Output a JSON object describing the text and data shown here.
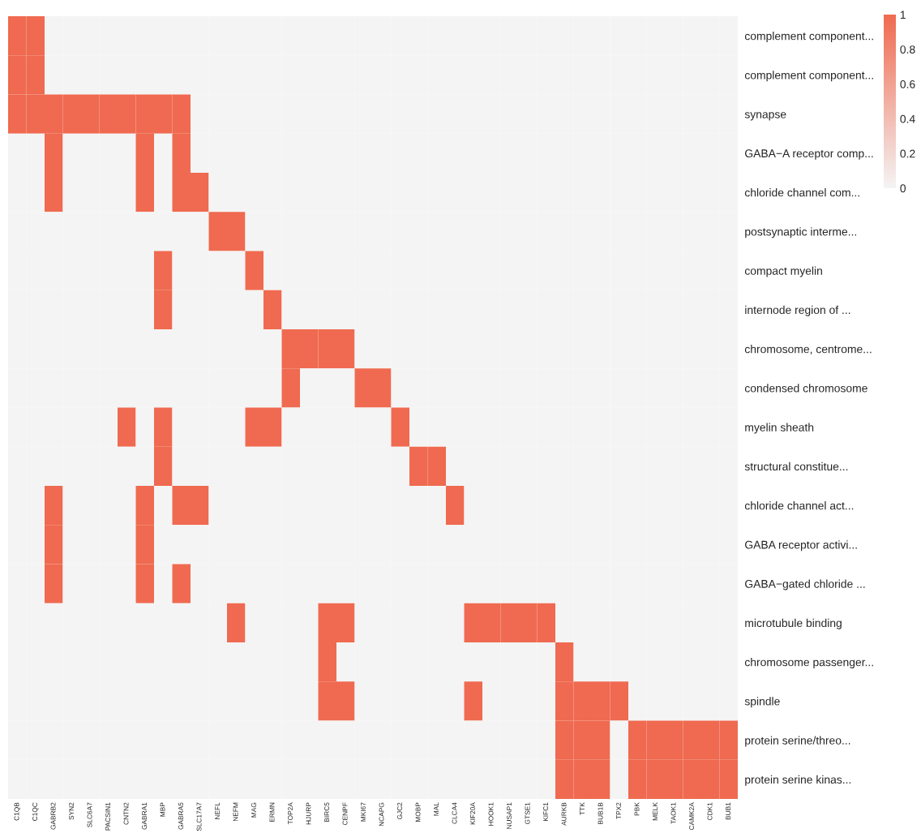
{
  "chart_data": {
    "type": "heatmap",
    "categories": [
      "C1QB",
      "C1QC",
      "GABRB2",
      "SYN2",
      "SLC6A7",
      "PACSIN1",
      "CNTN2",
      "GABRA1",
      "MBP",
      "GABRA5",
      "SLC17A7",
      "NEFL",
      "NEFM",
      "MAG",
      "ERMN",
      "TOP2A",
      "HJURP",
      "BIRC5",
      "CENPF",
      "MKI67",
      "NCAPG",
      "GJC2",
      "MOBP",
      "MAL",
      "CLCA4",
      "KIF20A",
      "HOOK1",
      "NUSAP1",
      "GTSE1",
      "KIFC1",
      "AURKB",
      "TTK",
      "BUB1B",
      "TPX2",
      "PBK",
      "MELK",
      "TAOK1",
      "CAMK2A",
      "CDK1",
      "BUB1"
    ],
    "y_categories": [
      "complement component...",
      "complement component...",
      "synapse",
      "GABA−A receptor comp...",
      "chloride channel com...",
      "postsynaptic interme...",
      "compact myelin",
      "internode region of ...",
      "chromosome, centrome...",
      "condensed chromosome",
      "myelin sheath",
      "structural constitue...",
      "chloride channel act...",
      "GABA receptor activi...",
      "GABA−gated chloride ...",
      "microtubule binding",
      "chromosome passenger...",
      "spindle",
      "protein serine/threo...",
      "protein serine kinas..."
    ],
    "cells": [
      [
        1,
        1,
        0,
        0,
        0,
        0,
        0,
        0,
        0,
        0,
        0,
        0,
        0,
        0,
        0,
        0,
        0,
        0,
        0,
        0,
        0,
        0,
        0,
        0,
        0,
        0,
        0,
        0,
        0,
        0,
        0,
        0,
        0,
        0,
        0,
        0,
        0,
        0,
        0,
        0
      ],
      [
        1,
        1,
        0,
        0,
        0,
        0,
        0,
        0,
        0,
        0,
        0,
        0,
        0,
        0,
        0,
        0,
        0,
        0,
        0,
        0,
        0,
        0,
        0,
        0,
        0,
        0,
        0,
        0,
        0,
        0,
        0,
        0,
        0,
        0,
        0,
        0,
        0,
        0,
        0,
        0
      ],
      [
        1,
        1,
        1,
        1,
        1,
        1,
        1,
        1,
        1,
        1,
        0,
        0,
        0,
        0,
        0,
        0,
        0,
        0,
        0,
        0,
        0,
        0,
        0,
        0,
        0,
        0,
        0,
        0,
        0,
        0,
        0,
        0,
        0,
        0,
        0,
        0,
        0,
        0,
        0,
        0
      ],
      [
        0,
        0,
        1,
        0,
        0,
        0,
        0,
        1,
        0,
        1,
        0,
        0,
        0,
        0,
        0,
        0,
        0,
        0,
        0,
        0,
        0,
        0,
        0,
        0,
        0,
        0,
        0,
        0,
        0,
        0,
        0,
        0,
        0,
        0,
        0,
        0,
        0,
        0,
        0,
        0
      ],
      [
        0,
        0,
        1,
        0,
        0,
        0,
        0,
        1,
        0,
        1,
        1,
        0,
        0,
        0,
        0,
        0,
        0,
        0,
        0,
        0,
        0,
        0,
        0,
        0,
        0,
        0,
        0,
        0,
        0,
        0,
        0,
        0,
        0,
        0,
        0,
        0,
        0,
        0,
        0,
        0
      ],
      [
        0,
        0,
        0,
        0,
        0,
        0,
        0,
        0,
        0,
        0,
        0,
        1,
        1,
        0,
        0,
        0,
        0,
        0,
        0,
        0,
        0,
        0,
        0,
        0,
        0,
        0,
        0,
        0,
        0,
        0,
        0,
        0,
        0,
        0,
        0,
        0,
        0,
        0,
        0,
        0
      ],
      [
        0,
        0,
        0,
        0,
        0,
        0,
        0,
        0,
        1,
        0,
        0,
        0,
        0,
        1,
        0,
        0,
        0,
        0,
        0,
        0,
        0,
        0,
        0,
        0,
        0,
        0,
        0,
        0,
        0,
        0,
        0,
        0,
        0,
        0,
        0,
        0,
        0,
        0,
        0,
        0
      ],
      [
        0,
        0,
        0,
        0,
        0,
        0,
        0,
        0,
        1,
        0,
        0,
        0,
        0,
        0,
        1,
        0,
        0,
        0,
        0,
        0,
        0,
        0,
        0,
        0,
        0,
        0,
        0,
        0,
        0,
        0,
        0,
        0,
        0,
        0,
        0,
        0,
        0,
        0,
        0,
        0
      ],
      [
        0,
        0,
        0,
        0,
        0,
        0,
        0,
        0,
        0,
        0,
        0,
        0,
        0,
        0,
        0,
        1,
        1,
        1,
        1,
        0,
        0,
        0,
        0,
        0,
        0,
        0,
        0,
        0,
        0,
        0,
        0,
        0,
        0,
        0,
        0,
        0,
        0,
        0,
        0,
        0
      ],
      [
        0,
        0,
        0,
        0,
        0,
        0,
        0,
        0,
        0,
        0,
        0,
        0,
        0,
        0,
        0,
        1,
        0,
        0,
        0,
        1,
        1,
        0,
        0,
        0,
        0,
        0,
        0,
        0,
        0,
        0,
        0,
        0,
        0,
        0,
        0,
        0,
        0,
        0,
        0,
        0
      ],
      [
        0,
        0,
        0,
        0,
        0,
        0,
        1,
        0,
        1,
        0,
        0,
        0,
        0,
        1,
        1,
        0,
        0,
        0,
        0,
        0,
        0,
        1,
        0,
        0,
        0,
        0,
        0,
        0,
        0,
        0,
        0,
        0,
        0,
        0,
        0,
        0,
        0,
        0,
        0,
        0
      ],
      [
        0,
        0,
        0,
        0,
        0,
        0,
        0,
        0,
        1,
        0,
        0,
        0,
        0,
        0,
        0,
        0,
        0,
        0,
        0,
        0,
        0,
        0,
        1,
        1,
        0,
        0,
        0,
        0,
        0,
        0,
        0,
        0,
        0,
        0,
        0,
        0,
        0,
        0,
        0,
        0
      ],
      [
        0,
        0,
        1,
        0,
        0,
        0,
        0,
        1,
        0,
        1,
        1,
        0,
        0,
        0,
        0,
        0,
        0,
        0,
        0,
        0,
        0,
        0,
        0,
        0,
        1,
        0,
        0,
        0,
        0,
        0,
        0,
        0,
        0,
        0,
        0,
        0,
        0,
        0,
        0,
        0
      ],
      [
        0,
        0,
        1,
        0,
        0,
        0,
        0,
        1,
        0,
        0,
        0,
        0,
        0,
        0,
        0,
        0,
        0,
        0,
        0,
        0,
        0,
        0,
        0,
        0,
        0,
        0,
        0,
        0,
        0,
        0,
        0,
        0,
        0,
        0,
        0,
        0,
        0,
        0,
        0,
        0
      ],
      [
        0,
        0,
        1,
        0,
        0,
        0,
        0,
        1,
        0,
        1,
        0,
        0,
        0,
        0,
        0,
        0,
        0,
        0,
        0,
        0,
        0,
        0,
        0,
        0,
        0,
        0,
        0,
        0,
        0,
        0,
        0,
        0,
        0,
        0,
        0,
        0,
        0,
        0,
        0,
        0
      ],
      [
        0,
        0,
        0,
        0,
        0,
        0,
        0,
        0,
        0,
        0,
        0,
        0,
        1,
        0,
        0,
        0,
        0,
        1,
        1,
        0,
        0,
        0,
        0,
        0,
        0,
        1,
        1,
        1,
        1,
        1,
        0,
        0,
        0,
        0,
        0,
        0,
        0,
        0,
        0,
        0
      ],
      [
        0,
        0,
        0,
        0,
        0,
        0,
        0,
        0,
        0,
        0,
        0,
        0,
        0,
        0,
        0,
        0,
        0,
        1,
        0,
        0,
        0,
        0,
        0,
        0,
        0,
        0,
        0,
        0,
        0,
        0,
        1,
        0,
        0,
        0,
        0,
        0,
        0,
        0,
        0,
        0
      ],
      [
        0,
        0,
        0,
        0,
        0,
        0,
        0,
        0,
        0,
        0,
        0,
        0,
        0,
        0,
        0,
        0,
        0,
        1,
        1,
        0,
        0,
        0,
        0,
        0,
        0,
        1,
        0,
        0,
        0,
        0,
        1,
        1,
        1,
        1,
        0,
        0,
        0,
        0,
        0,
        0
      ],
      [
        0,
        0,
        0,
        0,
        0,
        0,
        0,
        0,
        0,
        0,
        0,
        0,
        0,
        0,
        0,
        0,
        0,
        0,
        0,
        0,
        0,
        0,
        0,
        0,
        0,
        0,
        0,
        0,
        0,
        0,
        1,
        1,
        1,
        0,
        1,
        1,
        1,
        1,
        1,
        1
      ],
      [
        0,
        0,
        0,
        0,
        0,
        0,
        0,
        0,
        0,
        0,
        0,
        0,
        0,
        0,
        0,
        0,
        0,
        0,
        0,
        0,
        0,
        0,
        0,
        0,
        0,
        0,
        0,
        0,
        0,
        0,
        1,
        1,
        1,
        0,
        1,
        1,
        1,
        1,
        1,
        1
      ]
    ],
    "clim": [
      0,
      1
    ],
    "cticks": [
      0,
      0.2,
      0.4,
      0.6,
      0.8,
      1
    ]
  }
}
